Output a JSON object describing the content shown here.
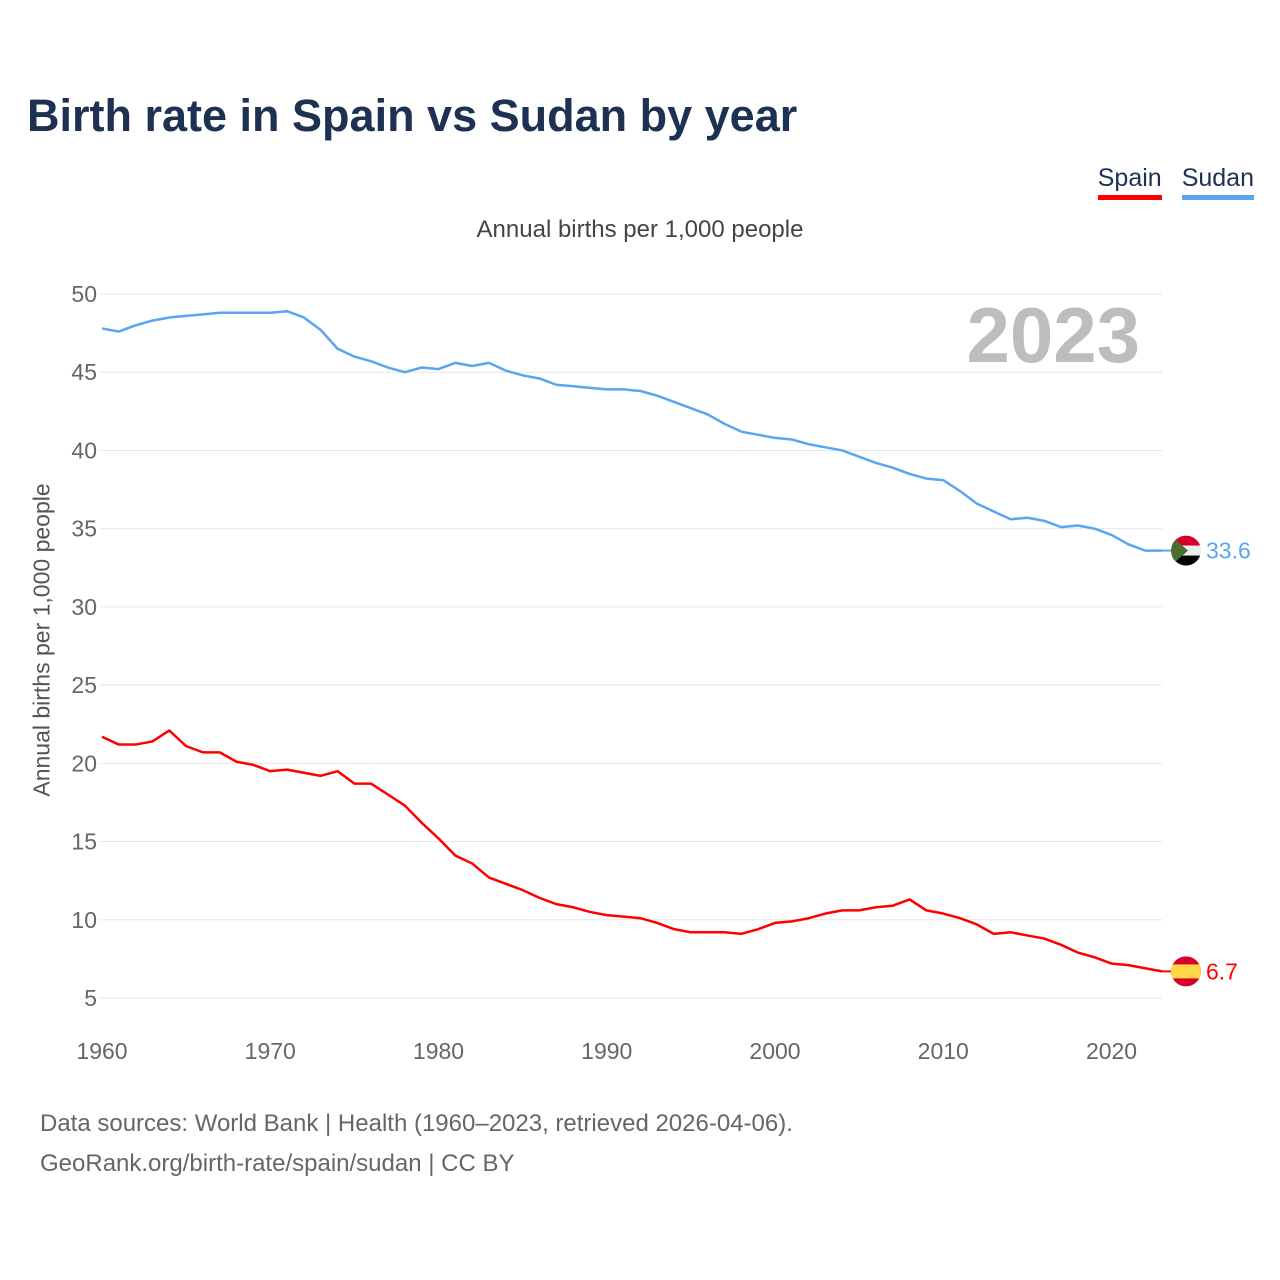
{
  "title": "Birth rate in Spain vs Sudan by year",
  "year_watermark": "2023",
  "footer": {
    "line1": "Data sources: World Bank | Health (1960–2023, retrieved 2026-04-06).",
    "line2": "GeoRank.org/birth-rate/spain/sudan | CC BY"
  },
  "chart_data": {
    "type": "line",
    "title": "Annual births per 1,000 people",
    "xlabel": "",
    "ylabel": "Annual births per 1,000 people",
    "xlim": [
      1960,
      2023
    ],
    "ylim": [
      5,
      50
    ],
    "yticks": [
      5,
      10,
      15,
      20,
      25,
      30,
      35,
      40,
      45,
      50
    ],
    "xticks": [
      1960,
      1970,
      1980,
      1990,
      2000,
      2010,
      2020
    ],
    "grid": true,
    "legend": "top-right",
    "x_start": 1960,
    "series": [
      {
        "name": "Spain",
        "color": "#ff0000",
        "end_label": "6.7",
        "flag": "spain-flag",
        "values": [
          21.7,
          21.2,
          21.2,
          21.4,
          22.1,
          21.1,
          20.7,
          20.7,
          20.1,
          19.9,
          19.5,
          19.6,
          19.4,
          19.2,
          19.5,
          18.7,
          18.7,
          18.0,
          17.3,
          16.2,
          15.2,
          14.1,
          13.6,
          12.7,
          12.3,
          11.9,
          11.4,
          11.0,
          10.8,
          10.5,
          10.3,
          10.2,
          10.1,
          9.8,
          9.4,
          9.2,
          9.2,
          9.2,
          9.1,
          9.4,
          9.8,
          9.9,
          10.1,
          10.4,
          10.6,
          10.6,
          10.8,
          10.9,
          11.3,
          10.6,
          10.4,
          10.1,
          9.7,
          9.1,
          9.2,
          9.0,
          8.8,
          8.4,
          7.9,
          7.6,
          7.2,
          7.1,
          6.9,
          6.7
        ]
      },
      {
        "name": "Sudan",
        "color": "#5aa5ee",
        "end_label": "33.6",
        "flag": "sudan-flag",
        "values": [
          47.8,
          47.6,
          48.0,
          48.3,
          48.5,
          48.6,
          48.7,
          48.8,
          48.8,
          48.8,
          48.8,
          48.9,
          48.5,
          47.7,
          46.5,
          46.0,
          45.7,
          45.3,
          45.0,
          45.3,
          45.2,
          45.6,
          45.4,
          45.6,
          45.1,
          44.8,
          44.6,
          44.2,
          44.1,
          44.0,
          43.9,
          43.9,
          43.8,
          43.5,
          43.1,
          42.7,
          42.3,
          41.7,
          41.2,
          41.0,
          40.8,
          40.7,
          40.4,
          40.2,
          40.0,
          39.6,
          39.2,
          38.9,
          38.5,
          38.2,
          38.1,
          37.4,
          36.6,
          36.1,
          35.6,
          35.7,
          35.5,
          35.1,
          35.2,
          35.0,
          34.6,
          34.0,
          33.6,
          33.6
        ]
      }
    ]
  }
}
